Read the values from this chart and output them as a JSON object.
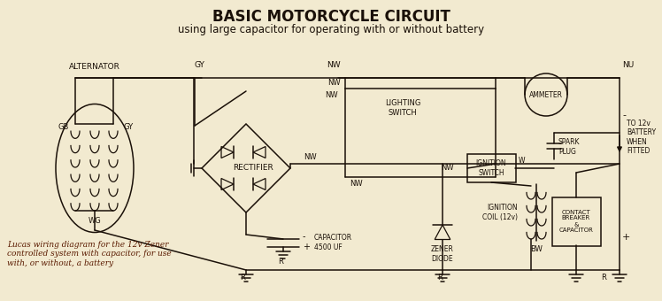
{
  "title_line1": "BASIC MOTORCYCLE CIRCUIT",
  "title_line2": "using large capacitor for operating with or without battery",
  "bg_color": "#f2ead0",
  "line_color": "#1a1008",
  "text_color": "#1a1008",
  "caption": "Lucas wiring diagram for the 12v Zener\ncontrolled system with capacitor, for use\nwith, or without, a battery",
  "caption_color": "#5a1a00"
}
